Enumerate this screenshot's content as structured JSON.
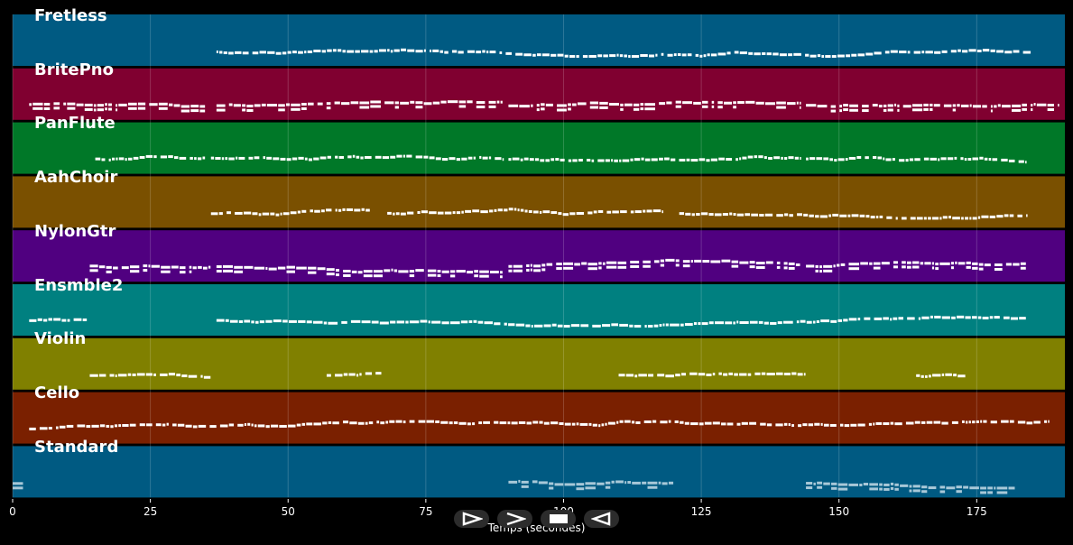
{
  "chart_data": {
    "type": "piano-roll",
    "xlabel": "Temps (secondes)",
    "xlim": [
      0,
      191
    ],
    "x_ticks": [
      0,
      25,
      50,
      75,
      100,
      125,
      150,
      175
    ],
    "grid": true,
    "tracks": [
      {
        "name": "Fretless",
        "color": "#005a82",
        "segments": [
          [
            37,
            185
          ]
        ],
        "density": 0.7
      },
      {
        "name": "BritePno",
        "color": "#800030",
        "segments": [
          [
            3,
            35
          ],
          [
            37,
            89
          ],
          [
            90,
            143
          ],
          [
            144,
            190
          ]
        ],
        "density": 1.0
      },
      {
        "name": "PanFlute",
        "color": "#007828",
        "segments": [
          [
            15,
            35
          ],
          [
            36,
            89
          ],
          [
            90,
            143
          ],
          [
            144,
            184
          ]
        ],
        "density": 0.6
      },
      {
        "name": "AahChoir",
        "color": "#7a5000",
        "segments": [
          [
            36,
            65
          ],
          [
            68,
            118
          ],
          [
            121,
            184
          ]
        ],
        "density": 0.7
      },
      {
        "name": "NylonGtr",
        "color": "#500080",
        "segments": [
          [
            14,
            36
          ],
          [
            37,
            89
          ],
          [
            90,
            143
          ],
          [
            144,
            184
          ]
        ],
        "density": 1.0
      },
      {
        "name": "Ensmble2",
        "color": "#008080",
        "segments": [
          [
            3,
            14
          ],
          [
            37,
            184
          ]
        ],
        "density": 0.9
      },
      {
        "name": "Violin",
        "color": "#808000",
        "segments": [
          [
            14,
            36
          ],
          [
            57,
            67
          ],
          [
            110,
            144
          ],
          [
            164,
            173
          ]
        ],
        "density": 0.8
      },
      {
        "name": "Cello",
        "color": "#7a2000",
        "segments": [
          [
            3,
            188
          ]
        ],
        "density": 0.7
      },
      {
        "name": "Standard",
        "color": "#005a82",
        "segments": [
          [
            0,
            2
          ],
          [
            90,
            120
          ],
          [
            144,
            182
          ]
        ],
        "density": 1.0
      }
    ]
  },
  "controls": [
    {
      "name": "play-icon",
      "glyph": "⊳"
    },
    {
      "name": "forward-icon",
      "glyph": ">"
    },
    {
      "name": "stop-icon",
      "glyph": "▬"
    },
    {
      "name": "rewind-icon",
      "glyph": "◁"
    }
  ]
}
